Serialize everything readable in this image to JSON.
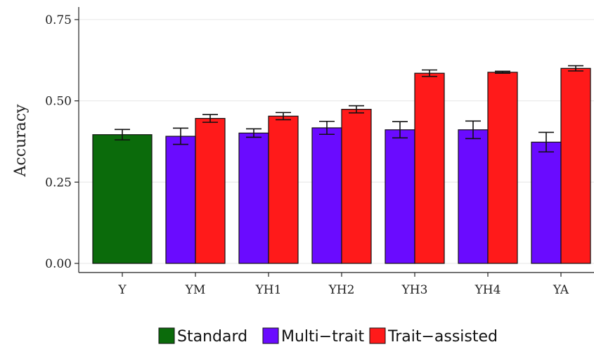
{
  "chart_data": {
    "type": "bar",
    "ylabel": "Accuracy",
    "xlabel": "",
    "ylim": [
      0,
      0.78
    ],
    "yticks": [
      "0.00",
      "0.25",
      "0.50",
      "0.75"
    ],
    "ytick_values": [
      0,
      0.25,
      0.5,
      0.75
    ],
    "grid": true,
    "legend_position": "bottom",
    "categories": [
      "Y",
      "YM",
      "YH1",
      "YH2",
      "YH3",
      "YH4",
      "YA"
    ],
    "series": [
      {
        "name": "Standard",
        "color": "#0b6b0b",
        "values": [
          0.396,
          null,
          null,
          null,
          null,
          null,
          null
        ],
        "errors": [
          0.016,
          null,
          null,
          null,
          null,
          null,
          null
        ]
      },
      {
        "name": "Multi−trait",
        "color": "#6a0bff",
        "values": [
          null,
          0.391,
          0.401,
          0.417,
          0.411,
          0.411,
          0.373
        ],
        "errors": [
          null,
          0.025,
          0.013,
          0.02,
          0.025,
          0.027,
          0.03
        ]
      },
      {
        "name": "Trait−assisted",
        "color": "#ff1a1a",
        "values": [
          null,
          0.446,
          0.453,
          0.474,
          0.585,
          0.588,
          0.6
        ],
        "errors": [
          null,
          0.012,
          0.011,
          0.011,
          0.01,
          0.003,
          0.008
        ]
      }
    ]
  }
}
